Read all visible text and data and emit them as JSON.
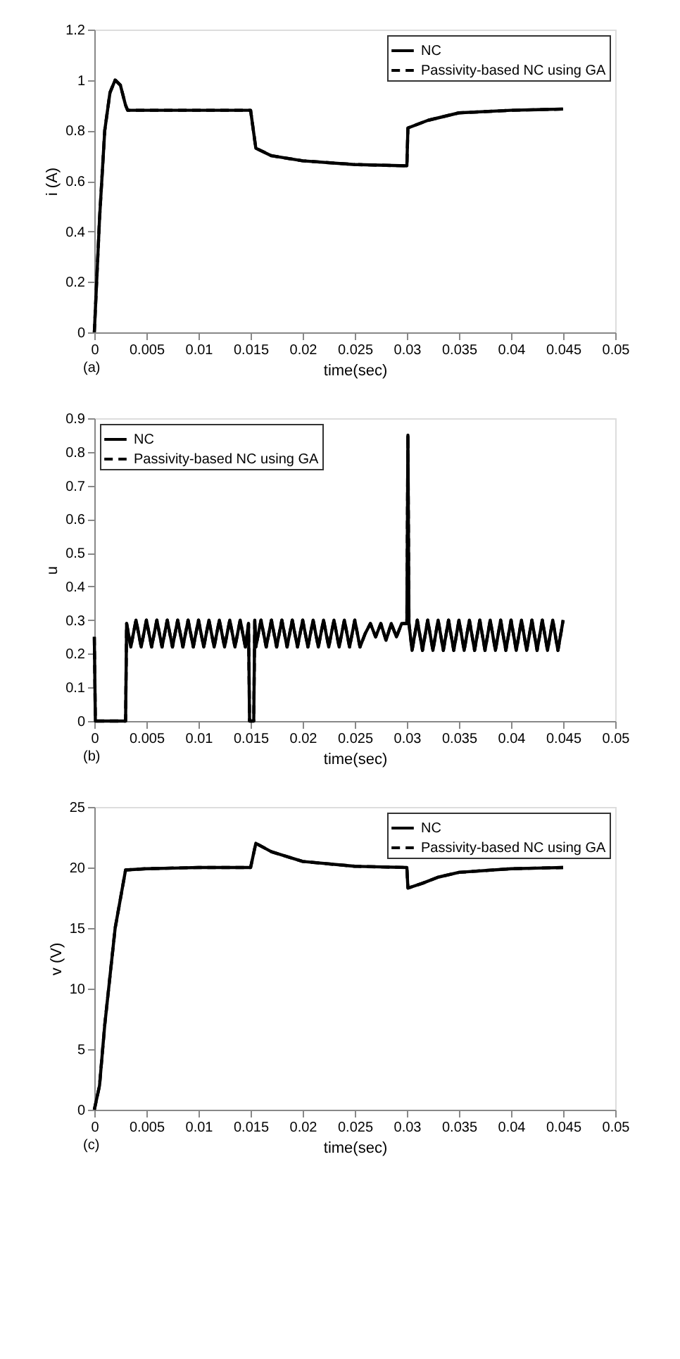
{
  "chart_data": [
    {
      "type": "line",
      "xlabel": "time(sec)",
      "ylabel": "i (A)",
      "annotations": [
        "(a)"
      ],
      "legend": "top right",
      "grid": false,
      "x": [
        0,
        0.0005,
        0.001,
        0.0015,
        0.002,
        0.0025,
        0.003,
        0.0032,
        0.005,
        0.01,
        0.015,
        0.0155,
        0.017,
        0.02,
        0.025,
        0.03,
        0.0301,
        0.032,
        0.035,
        0.04,
        0.045
      ],
      "series": [
        {
          "name": "NC",
          "color": "#000000",
          "line_style": "solid",
          "values": [
            0,
            0.45,
            0.8,
            0.95,
            1.0,
            0.98,
            0.9,
            0.88,
            0.88,
            0.88,
            0.88,
            0.73,
            0.7,
            0.68,
            0.665,
            0.66,
            0.81,
            0.84,
            0.87,
            0.88,
            0.885
          ]
        },
        {
          "name": "Passivity-based NC using GA",
          "color": "#000000",
          "line_style": "dashed",
          "values": [
            0,
            0.45,
            0.8,
            0.95,
            1.0,
            0.98,
            0.9,
            0.88,
            0.88,
            0.88,
            0.88,
            0.73,
            0.7,
            0.68,
            0.665,
            0.66,
            0.81,
            0.84,
            0.87,
            0.88,
            0.885
          ]
        }
      ],
      "xlim": [
        0,
        0.05
      ],
      "xticks": [
        0,
        0.005,
        0.01,
        0.015,
        0.02,
        0.025,
        0.03,
        0.035,
        0.04,
        0.045,
        0.05
      ],
      "ylim": [
        0,
        1.2
      ],
      "yticks": [
        0,
        0.2,
        0.4,
        0.6,
        0.8,
        1,
        1.2
      ]
    },
    {
      "type": "line",
      "xlabel": "time(sec)",
      "ylabel": "u",
      "annotations": [
        "(b)"
      ],
      "legend": "top left",
      "grid": false,
      "x": [
        0,
        0.0001,
        0.003,
        0.0031,
        0.0035,
        0.004,
        0.0045,
        0.005,
        0.0055,
        0.006,
        0.0065,
        0.007,
        0.0075,
        0.008,
        0.0085,
        0.009,
        0.0095,
        0.01,
        0.0105,
        0.011,
        0.0115,
        0.012,
        0.0125,
        0.013,
        0.0135,
        0.014,
        0.0145,
        0.0148,
        0.0149,
        0.0153,
        0.0154,
        0.0155,
        0.016,
        0.0165,
        0.017,
        0.0175,
        0.018,
        0.0185,
        0.019,
        0.0195,
        0.02,
        0.0205,
        0.021,
        0.0215,
        0.022,
        0.0225,
        0.023,
        0.0235,
        0.024,
        0.0245,
        0.025,
        0.0255,
        0.026,
        0.0265,
        0.027,
        0.0275,
        0.028,
        0.0285,
        0.029,
        0.0295,
        0.03,
        0.0301,
        0.0302,
        0.0305,
        0.031,
        0.0315,
        0.032,
        0.0325,
        0.033,
        0.0335,
        0.034,
        0.0345,
        0.035,
        0.0355,
        0.036,
        0.0365,
        0.037,
        0.0375,
        0.038,
        0.0385,
        0.039,
        0.0395,
        0.04,
        0.0405,
        0.041,
        0.0415,
        0.042,
        0.0425,
        0.043,
        0.0435,
        0.044,
        0.0445,
        0.045
      ],
      "series": [
        {
          "name": "NC",
          "color": "#000000",
          "line_style": "solid",
          "values": [
            0.25,
            0,
            0,
            0.29,
            0.22,
            0.3,
            0.22,
            0.3,
            0.22,
            0.3,
            0.22,
            0.3,
            0.22,
            0.3,
            0.22,
            0.3,
            0.22,
            0.3,
            0.22,
            0.3,
            0.22,
            0.3,
            0.22,
            0.3,
            0.22,
            0.3,
            0.22,
            0.29,
            0,
            0,
            0.3,
            0.22,
            0.3,
            0.22,
            0.3,
            0.22,
            0.3,
            0.22,
            0.3,
            0.22,
            0.3,
            0.22,
            0.3,
            0.22,
            0.3,
            0.22,
            0.3,
            0.22,
            0.3,
            0.22,
            0.3,
            0.22,
            0.26,
            0.29,
            0.25,
            0.29,
            0.24,
            0.29,
            0.25,
            0.29,
            0.29,
            0.85,
            0.29,
            0.21,
            0.3,
            0.21,
            0.3,
            0.21,
            0.3,
            0.21,
            0.3,
            0.21,
            0.3,
            0.21,
            0.3,
            0.21,
            0.3,
            0.21,
            0.3,
            0.21,
            0.3,
            0.21,
            0.3,
            0.21,
            0.3,
            0.21,
            0.3,
            0.21,
            0.3,
            0.21,
            0.3,
            0.21,
            0.3
          ]
        },
        {
          "name": "Passivity-based NC using GA",
          "color": "#000000",
          "line_style": "dashed",
          "values": [
            0.25,
            0,
            0,
            0.29,
            0.22,
            0.3,
            0.22,
            0.3,
            0.22,
            0.3,
            0.22,
            0.3,
            0.22,
            0.3,
            0.22,
            0.3,
            0.22,
            0.3,
            0.22,
            0.3,
            0.22,
            0.3,
            0.22,
            0.3,
            0.22,
            0.3,
            0.22,
            0.29,
            0,
            0,
            0.3,
            0.22,
            0.3,
            0.22,
            0.3,
            0.22,
            0.3,
            0.22,
            0.3,
            0.22,
            0.3,
            0.22,
            0.3,
            0.22,
            0.3,
            0.22,
            0.3,
            0.22,
            0.3,
            0.22,
            0.3,
            0.22,
            0.26,
            0.29,
            0.25,
            0.29,
            0.24,
            0.29,
            0.25,
            0.29,
            0.29,
            0.85,
            0.29,
            0.21,
            0.3,
            0.21,
            0.3,
            0.21,
            0.3,
            0.21,
            0.3,
            0.21,
            0.3,
            0.21,
            0.3,
            0.21,
            0.3,
            0.21,
            0.3,
            0.21,
            0.3,
            0.21,
            0.3,
            0.21,
            0.3,
            0.21,
            0.3,
            0.21,
            0.3,
            0.21,
            0.3,
            0.21,
            0.3
          ]
        }
      ],
      "xlim": [
        0,
        0.05
      ],
      "xticks": [
        0,
        0.005,
        0.01,
        0.015,
        0.02,
        0.025,
        0.03,
        0.035,
        0.04,
        0.045,
        0.05
      ],
      "ylim": [
        0,
        0.9
      ],
      "yticks": [
        0,
        0.1,
        0.2,
        0.3,
        0.4,
        0.5,
        0.6,
        0.7,
        0.8,
        0.9
      ]
    },
    {
      "type": "line",
      "xlabel": "time(sec)",
      "ylabel": "v (V)",
      "annotations": [
        "(c)"
      ],
      "legend": "top right",
      "grid": false,
      "x": [
        0,
        0.0005,
        0.001,
        0.002,
        0.003,
        0.005,
        0.01,
        0.015,
        0.0155,
        0.017,
        0.02,
        0.025,
        0.03,
        0.0301,
        0.0315,
        0.033,
        0.035,
        0.04,
        0.045
      ],
      "series": [
        {
          "name": "NC",
          "color": "#000000",
          "line_style": "solid",
          "values": [
            0,
            2,
            7,
            15,
            19.8,
            19.9,
            20,
            20,
            22,
            21.3,
            20.5,
            20.1,
            20,
            18.3,
            18.7,
            19.2,
            19.6,
            19.9,
            20
          ]
        },
        {
          "name": "Passivity-based NC using GA",
          "color": "#000000",
          "line_style": "dashed",
          "values": [
            0,
            2,
            7,
            15,
            19.8,
            19.9,
            20,
            20,
            22,
            21.3,
            20.5,
            20.1,
            20,
            18.3,
            18.7,
            19.2,
            19.6,
            19.9,
            20
          ]
        }
      ],
      "xlim": [
        0,
        0.05
      ],
      "xticks": [
        0,
        0.005,
        0.01,
        0.015,
        0.02,
        0.025,
        0.03,
        0.035,
        0.04,
        0.045,
        0.05
      ],
      "ylim": [
        0,
        25
      ],
      "yticks": [
        0,
        5,
        10,
        15,
        20,
        25
      ]
    }
  ]
}
